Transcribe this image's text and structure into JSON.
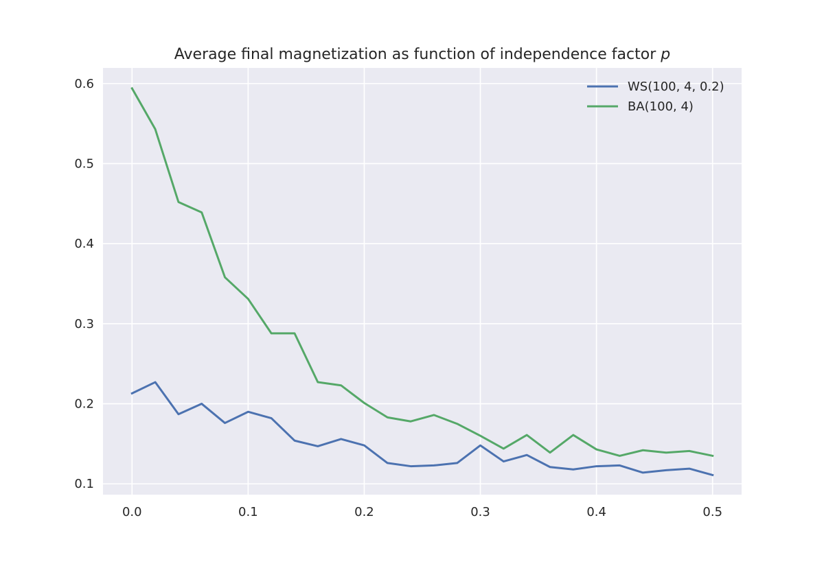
{
  "chart_data": {
    "type": "line",
    "title": "Average final magnetization as function of independence factor",
    "title_variable": "p",
    "xlabel": "",
    "ylabel": "",
    "xlim": [
      -0.025,
      0.525
    ],
    "ylim": [
      0.0865,
      0.6195
    ],
    "xticks": [
      0.0,
      0.1,
      0.2,
      0.3,
      0.4,
      0.5
    ],
    "xtick_labels": [
      "0.0",
      "0.1",
      "0.2",
      "0.3",
      "0.4",
      "0.5"
    ],
    "yticks": [
      0.1,
      0.2,
      0.3,
      0.4,
      0.5,
      0.6
    ],
    "ytick_labels": [
      "0.1",
      "0.2",
      "0.3",
      "0.4",
      "0.5",
      "0.6"
    ],
    "grid": true,
    "legend_position": "top-right",
    "x": [
      0.0,
      0.02,
      0.04,
      0.06,
      0.08,
      0.1,
      0.12,
      0.14,
      0.16,
      0.18,
      0.2,
      0.22,
      0.24,
      0.26,
      0.28,
      0.3,
      0.32,
      0.34,
      0.36,
      0.38,
      0.4,
      0.42,
      0.44,
      0.46,
      0.48,
      0.5
    ],
    "series": [
      {
        "name": "WS(100, 4, 0.2)",
        "color": "#4c72b0",
        "values": [
          0.213,
          0.227,
          0.187,
          0.2,
          0.176,
          0.19,
          0.182,
          0.154,
          0.147,
          0.156,
          0.148,
          0.126,
          0.122,
          0.123,
          0.126,
          0.148,
          0.128,
          0.136,
          0.121,
          0.118,
          0.122,
          0.123,
          0.114,
          0.117,
          0.119,
          0.111
        ]
      },
      {
        "name": "BA(100, 4)",
        "color": "#55a868",
        "values": [
          0.594,
          0.543,
          0.452,
          0.439,
          0.358,
          0.331,
          0.288,
          0.288,
          0.227,
          0.223,
          0.201,
          0.183,
          0.178,
          0.186,
          0.175,
          0.16,
          0.144,
          0.161,
          0.139,
          0.161,
          0.143,
          0.135,
          0.142,
          0.139,
          0.141,
          0.135
        ]
      }
    ],
    "plot_background": "#eaeaf2"
  }
}
